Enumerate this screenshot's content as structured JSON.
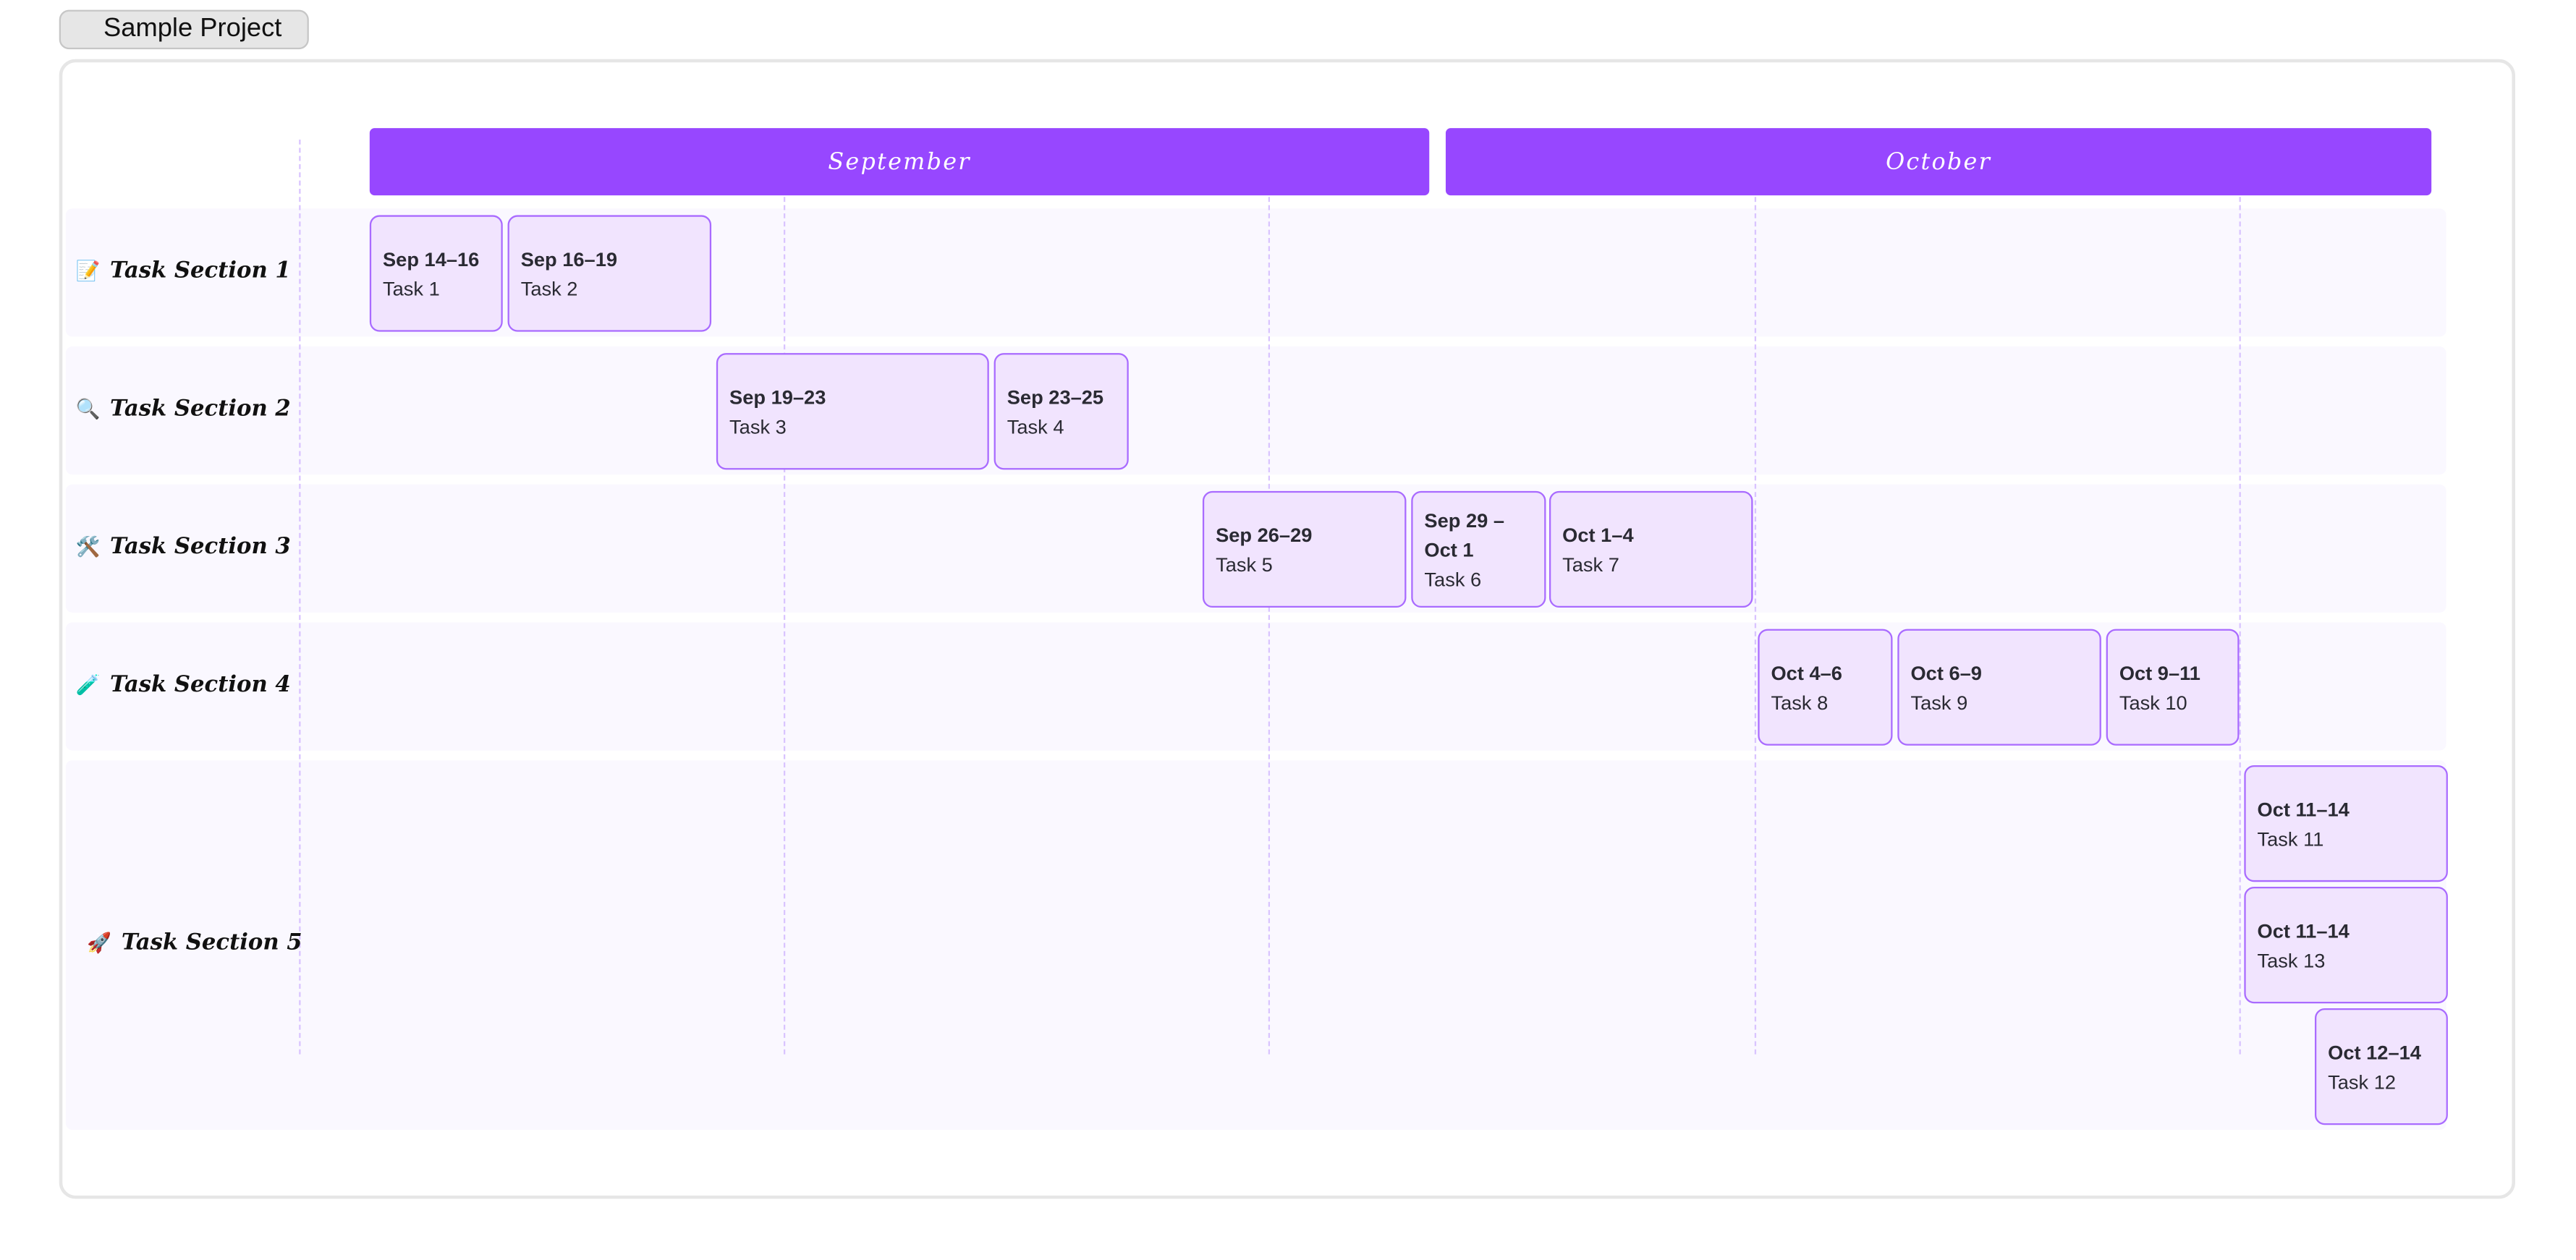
{
  "project": {
    "title": "Sample Project"
  },
  "months": [
    "September",
    "October"
  ],
  "colors": {
    "month_bar": "#9747ff",
    "task_fill": "#f1e4fe",
    "task_border": "#a96bff",
    "row_bg": "#faf8ff",
    "grid": "#d9c4ff"
  },
  "sections": [
    {
      "icon": "📝",
      "label": "Task Section 1"
    },
    {
      "icon": "🔍",
      "label": "Task Section 2"
    },
    {
      "icon": "🛠️",
      "label": "Task Section 3"
    },
    {
      "icon": "🧪",
      "label": "Task Section 4"
    },
    {
      "icon": "🚀",
      "label": "Task Section 5"
    }
  ],
  "tasks": [
    {
      "dates": "Sep 14–16",
      "name": "Task 1"
    },
    {
      "dates": "Sep 16–19",
      "name": "Task 2"
    },
    {
      "dates": "Sep 19–23",
      "name": "Task 3"
    },
    {
      "dates": "Sep 23–25",
      "name": "Task 4"
    },
    {
      "dates": "Sep 26–29",
      "name": "Task 5"
    },
    {
      "dates": "Sep 29 – Oct 1",
      "name": "Task 6"
    },
    {
      "dates": "Oct 1–4",
      "name": "Task 7"
    },
    {
      "dates": "Oct 4–6",
      "name": "Task 8"
    },
    {
      "dates": "Oct 6–9",
      "name": "Task 9"
    },
    {
      "dates": "Oct 9–11",
      "name": "Task 10"
    },
    {
      "dates": "Oct 11–14",
      "name": "Task 11"
    },
    {
      "dates": "Oct 11–14",
      "name": "Task 13"
    },
    {
      "dates": "Oct 12–14",
      "name": "Task 12"
    }
  ]
}
